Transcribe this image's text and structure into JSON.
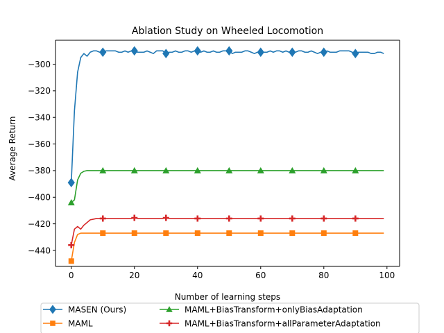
{
  "chart_data": {
    "type": "line",
    "title": "Ablation Study on Wheeled Locomotion",
    "xlabel": "Number of learning steps",
    "ylabel": "Average Return",
    "xlim": [
      -5,
      104
    ],
    "ylim": [
      -452,
      -282
    ],
    "xticks": [
      0,
      20,
      40,
      60,
      80,
      100
    ],
    "yticks": [
      -440,
      -420,
      -400,
      -380,
      -360,
      -340,
      -320,
      -300
    ],
    "xtick_labels": [
      "0",
      "20",
      "40",
      "60",
      "80",
      "100"
    ],
    "ytick_labels": [
      "−440",
      "−420",
      "−400",
      "−380",
      "−360",
      "−340",
      "−320",
      "−300"
    ],
    "grid": false,
    "legend_position": "bottom-center",
    "marker_every": 10,
    "x": [
      0,
      1,
      2,
      3,
      4,
      5,
      6,
      7,
      8,
      9,
      10,
      11,
      12,
      13,
      14,
      15,
      16,
      17,
      18,
      19,
      20,
      21,
      22,
      23,
      24,
      25,
      26,
      27,
      28,
      29,
      30,
      31,
      32,
      33,
      34,
      35,
      36,
      37,
      38,
      39,
      40,
      41,
      42,
      43,
      44,
      45,
      46,
      47,
      48,
      49,
      50,
      51,
      52,
      53,
      54,
      55,
      56,
      57,
      58,
      59,
      60,
      61,
      62,
      63,
      64,
      65,
      66,
      67,
      68,
      69,
      70,
      71,
      72,
      73,
      74,
      75,
      76,
      77,
      78,
      79,
      80,
      81,
      82,
      83,
      84,
      85,
      86,
      87,
      88,
      89,
      90,
      91,
      92,
      93,
      94,
      95,
      96,
      97,
      98,
      99
    ],
    "series": [
      {
        "name": "MASEN (Ours)",
        "color": "#1f77b4",
        "marker": "diamond",
        "values": [
          -389,
          -335,
          -306,
          -295,
          -292,
          -294,
          -291,
          -290,
          -290,
          -291,
          -291,
          -290,
          -290,
          -290,
          -290,
          -291,
          -291,
          -290,
          -291,
          -290,
          -290,
          -291,
          -291,
          -291,
          -290,
          -291,
          -292,
          -290,
          -290,
          -290,
          -292,
          -291,
          -291,
          -290,
          -291,
          -291,
          -290,
          -290,
          -291,
          -290,
          -290,
          -291,
          -290,
          -291,
          -291,
          -290,
          -291,
          -291,
          -290,
          -290,
          -290,
          -292,
          -291,
          -291,
          -291,
          -290,
          -290,
          -291,
          -292,
          -291,
          -291,
          -291,
          -291,
          -290,
          -291,
          -290,
          -290,
          -291,
          -290,
          -291,
          -291,
          -291,
          -290,
          -290,
          -291,
          -291,
          -290,
          -291,
          -292,
          -291,
          -291,
          -290,
          -291,
          -291,
          -291,
          -290,
          -290,
          -290,
          -290,
          -291,
          -292,
          -291,
          -291,
          -291,
          -291,
          -292,
          -292,
          -291,
          -291,
          -292
        ]
      },
      {
        "name": "MAML",
        "color": "#ff7f0e",
        "marker": "square",
        "values": [
          -448,
          -434,
          -428,
          -427,
          -427,
          -427,
          -427,
          -427,
          -427,
          -427,
          -427,
          -427,
          -427,
          -427,
          -427,
          -427,
          -427,
          -427,
          -427,
          -427,
          -427,
          -427,
          -427,
          -427,
          -427,
          -427,
          -427,
          -427,
          -427,
          -427,
          -427,
          -427,
          -427,
          -427,
          -427,
          -427,
          -427,
          -427,
          -427,
          -427,
          -427,
          -427,
          -427,
          -427,
          -427,
          -427,
          -427,
          -427,
          -427,
          -427,
          -427,
          -427,
          -427,
          -427,
          -427,
          -427,
          -427,
          -427,
          -427,
          -427,
          -427,
          -427,
          -427,
          -427,
          -427,
          -427,
          -427,
          -427,
          -427,
          -427,
          -427,
          -427,
          -427,
          -427,
          -427,
          -427,
          -427,
          -427,
          -427,
          -427,
          -427,
          -427,
          -427,
          -427,
          -427,
          -427,
          -427,
          -427,
          -427,
          -427,
          -427,
          -427,
          -427,
          -427,
          -427,
          -427,
          -427,
          -427,
          -427,
          -427
        ]
      },
      {
        "name": "MAML+BiasTransform+onlyBiasAdaptation",
        "color": "#2ca02c",
        "marker": "triangle",
        "values": [
          -404,
          -402,
          -387,
          -382,
          -380.5,
          -380,
          -380,
          -380,
          -380,
          -380,
          -380,
          -380,
          -380,
          -380,
          -380,
          -380,
          -380,
          -380,
          -380,
          -380,
          -380,
          -380,
          -380,
          -380,
          -380,
          -380,
          -380,
          -380,
          -380,
          -380,
          -380,
          -380,
          -380,
          -380,
          -380,
          -380,
          -380,
          -380,
          -380,
          -380,
          -380,
          -380,
          -380,
          -380,
          -380,
          -380,
          -380,
          -380,
          -380,
          -380,
          -380,
          -380,
          -380,
          -380,
          -380,
          -380,
          -380,
          -380,
          -380,
          -380,
          -380,
          -380,
          -380,
          -380,
          -380,
          -380,
          -380,
          -380,
          -380,
          -380,
          -380,
          -380,
          -380,
          -380,
          -380,
          -380,
          -380,
          -380,
          -380,
          -380,
          -380,
          -380,
          -380,
          -380,
          -380,
          -380,
          -380,
          -380,
          -380,
          -380,
          -380,
          -380,
          -380,
          -380,
          -380,
          -380,
          -380,
          -380,
          -380,
          -380
        ]
      },
      {
        "name": "MAML+BiasTransform+allParameterAdaptation",
        "color": "#d62728",
        "marker": "plus",
        "values": [
          -436,
          -424,
          -422,
          -424,
          -421,
          -419,
          -417,
          -416.5,
          -416,
          -416,
          -416,
          -416,
          -416,
          -416,
          -416,
          -416,
          -416,
          -416,
          -416,
          -416,
          -415.5,
          -416,
          -416,
          -416,
          -416,
          -416,
          -416,
          -416,
          -416,
          -416,
          -415.5,
          -416,
          -416,
          -416,
          -416,
          -416,
          -416,
          -416,
          -416,
          -416,
          -416,
          -416,
          -416,
          -416,
          -416,
          -416,
          -416,
          -416,
          -416,
          -416,
          -416,
          -416,
          -416,
          -416,
          -416,
          -416,
          -416,
          -416,
          -416,
          -416,
          -416,
          -416,
          -416,
          -416,
          -416,
          -416,
          -416,
          -416,
          -416,
          -416,
          -416,
          -416,
          -416,
          -416,
          -416,
          -416,
          -416,
          -416,
          -416,
          -416,
          -416,
          -416,
          -416,
          -416,
          -416,
          -416,
          -416,
          -416,
          -416,
          -416,
          -416,
          -416,
          -416,
          -416,
          -416,
          -416,
          -416,
          -416,
          -416,
          -416
        ]
      }
    ]
  }
}
